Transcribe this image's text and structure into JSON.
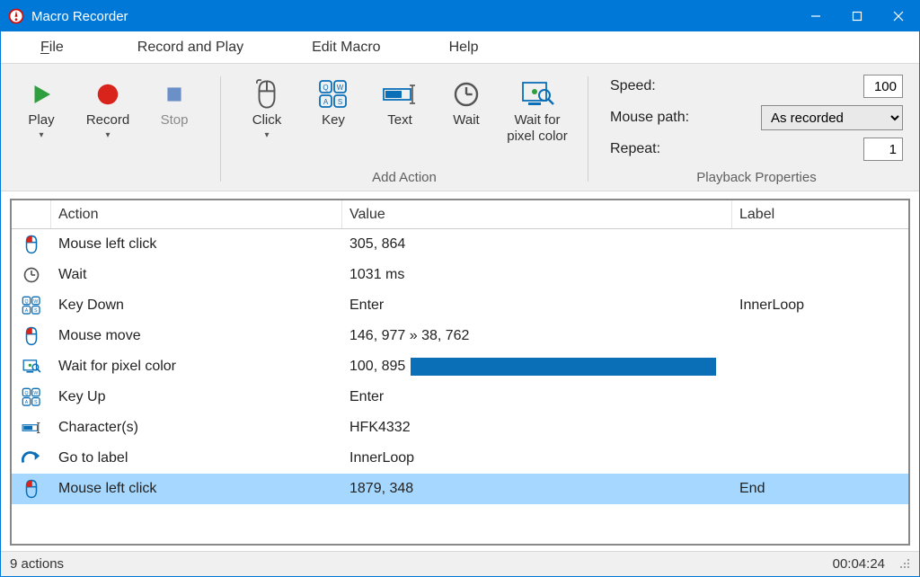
{
  "app": {
    "title": "Macro Recorder",
    "icon_color": "#d40c0c",
    "titlebar_bg": "#0078d7",
    "titlebar_fg": "#ffffff"
  },
  "menu": {
    "items": [
      {
        "label": "File",
        "underline_first": true
      },
      {
        "label": "Record and Play",
        "underline_first": false
      },
      {
        "label": "Edit Macro",
        "underline_first": false
      },
      {
        "label": "Help",
        "underline_first": false
      }
    ]
  },
  "ribbon": {
    "main_group_label": "",
    "buttons_left": [
      {
        "name": "play-button",
        "label": "Play",
        "icon": "play",
        "has_dropdown": true,
        "disabled": false
      },
      {
        "name": "record-button",
        "label": "Record",
        "icon": "record",
        "has_dropdown": true,
        "disabled": false
      },
      {
        "name": "stop-button",
        "label": "Stop",
        "icon": "stop",
        "has_dropdown": false,
        "disabled": true
      }
    ],
    "add_action_label": "Add Action",
    "buttons_add": [
      {
        "name": "click-button",
        "label": "Click",
        "icon": "mouse",
        "has_dropdown": true
      },
      {
        "name": "key-button",
        "label": "Key",
        "icon": "keycaps"
      },
      {
        "name": "text-button",
        "label": "Text",
        "icon": "textfield"
      },
      {
        "name": "wait-button",
        "label": "Wait",
        "icon": "clock"
      },
      {
        "name": "wait-pixel-button",
        "label": "Wait for\npixel color",
        "icon": "pixelsearch",
        "wide": true
      }
    ],
    "props_label": "Playback Properties",
    "props": {
      "speed_label": "Speed:",
      "speed_value": "100",
      "mouse_path_label": "Mouse path:",
      "mouse_path_value": "As recorded",
      "mouse_path_options": [
        "As recorded"
      ],
      "repeat_label": "Repeat:",
      "repeat_value": "1"
    }
  },
  "table": {
    "columns": {
      "action": "Action",
      "value": "Value",
      "label": "Label"
    },
    "rows": [
      {
        "icon": "mouse",
        "action": "Mouse left click",
        "value": "305, 864",
        "label": ""
      },
      {
        "icon": "clock",
        "action": "Wait",
        "value": "1031 ms",
        "label": ""
      },
      {
        "icon": "keycaps",
        "action": "Key Down",
        "value": "Enter",
        "label": "InnerLoop"
      },
      {
        "icon": "mouse",
        "action": "Mouse move",
        "value": "146, 977 » 38, 762",
        "label": ""
      },
      {
        "icon": "pixelsearch",
        "action": "Wait for pixel color",
        "value": "100, 895",
        "color": "#0a6fb6",
        "label": ""
      },
      {
        "icon": "keycaps",
        "action": "Key Up",
        "value": "Enter",
        "label": ""
      },
      {
        "icon": "textfield",
        "action": "Character(s)",
        "value": "HFK4332",
        "label": ""
      },
      {
        "icon": "goto",
        "action": "Go to label",
        "value": "InnerLoop",
        "label": ""
      },
      {
        "icon": "mouse",
        "action": "Mouse left click",
        "value": "1879, 348",
        "label": "End",
        "selected": true
      }
    ]
  },
  "status": {
    "left": "9 actions",
    "right": "00:04:24"
  },
  "colors": {
    "accent": "#0078d7",
    "play": "#2e9e3f",
    "record": "#d9241b",
    "stop": "#6b8fc7",
    "ribbon_bg": "#f0f0f0",
    "selected_row": "#a6d8ff"
  }
}
